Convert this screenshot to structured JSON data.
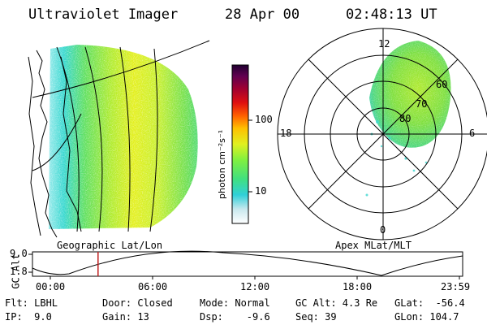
{
  "header": {
    "instrument": "Ultraviolet Imager",
    "date": "28 Apr 00",
    "time": "02:48:13 UT"
  },
  "geo_panel": {
    "label": "Geographic Lat/Lon"
  },
  "polar_panel": {
    "label": "Apex MLat/MLT",
    "mlt_labels": {
      "top": "12",
      "bottom": "0",
      "left": "18",
      "right": "6"
    },
    "mlat_labels": [
      "60",
      "70",
      "80"
    ]
  },
  "colorbar": {
    "unit_label": "photon cm⁻²s⁻¹",
    "scale": "log",
    "ticks": [
      "100",
      "10"
    ],
    "colors": [
      "#ffffff",
      "#c8e8ee",
      "#30d0d8",
      "#40e080",
      "#80f040",
      "#e0f020",
      "#ffc000",
      "#ff6000",
      "#e01010",
      "#a00030",
      "#600050",
      "#200030"
    ]
  },
  "altitude_plot": {
    "ylabel": "GC Alt",
    "y_ticks": [
      "9.0",
      "1.8"
    ],
    "x_ticks": [
      "00:00",
      "06:00",
      "12:00",
      "18:00",
      "23:59"
    ],
    "current_time_hours": 2.8
  },
  "info": {
    "flt": "Flt: LBHL",
    "ip": "IP:  9.0",
    "door": "Door: Closed",
    "gain": "Gain: 13",
    "mode": "Mode: Normal",
    "dsp": "Dsp:    -9.6",
    "gc_alt": "GC Alt: 4.3 Re",
    "seq": "Seq: 39",
    "glat": "GLat:  -56.4",
    "glon": "GLon: 104.7"
  }
}
